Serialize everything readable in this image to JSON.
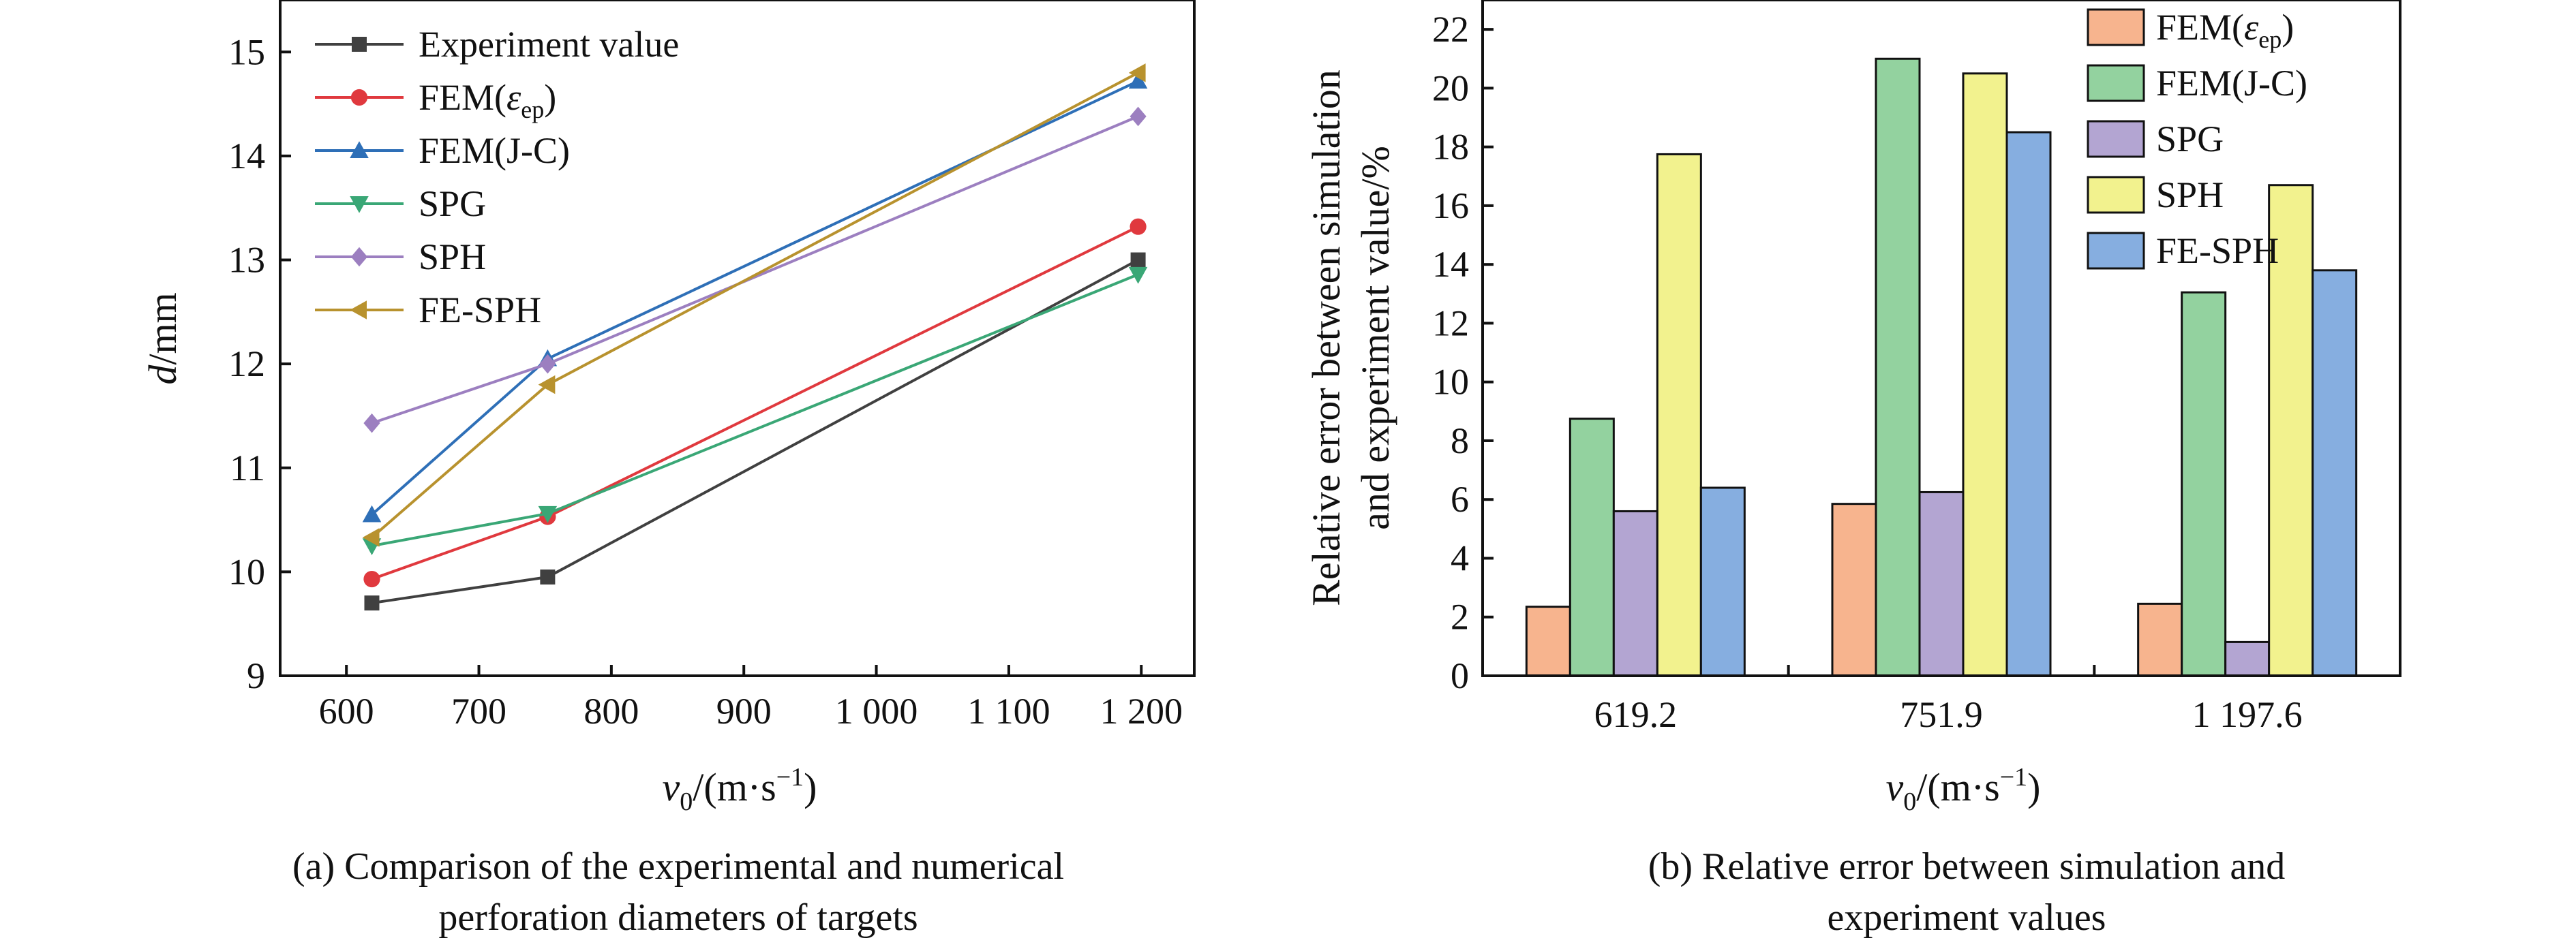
{
  "chart_data": [
    {
      "type": "line",
      "panel": "a",
      "xlabel_main": "v",
      "xlabel_sub": "0",
      "xlabel_unit": "/(m·s",
      "xlabel_sup": "−1",
      "xlabel_close": ")",
      "ylabel_var": "d",
      "ylabel_unit": "/mm",
      "xlim": [
        550,
        1240
      ],
      "ylim": [
        9,
        15.5
      ],
      "xticks": [
        600,
        700,
        800,
        900,
        1000,
        1100,
        1200
      ],
      "xtick_labels": [
        "600",
        "700",
        "800",
        "900",
        "1 000",
        "1 100",
        "1 200"
      ],
      "yticks": [
        9,
        10,
        11,
        12,
        13,
        14,
        15
      ],
      "ytick_labels": [
        "9",
        "10",
        "11",
        "12",
        "13",
        "14",
        "15"
      ],
      "x": [
        619.2,
        751.9,
        1197.6
      ],
      "series": [
        {
          "name": "Experiment value",
          "marker": "square",
          "color": "#404040",
          "values": [
            9.7,
            9.95,
            13.0
          ]
        },
        {
          "name": "FEM(",
          "name_sym": "ε",
          "name_sub": "ep",
          "name_close": ")",
          "marker": "circle",
          "color": "#e0393e",
          "values": [
            9.93,
            10.53,
            13.32
          ]
        },
        {
          "name": "FEM(J-C)",
          "marker": "triangle-up",
          "color": "#2e6fb7",
          "values": [
            10.55,
            12.05,
            14.72
          ]
        },
        {
          "name": "SPG",
          "marker": "triangle-down",
          "color": "#3aa776",
          "values": [
            10.25,
            10.56,
            12.86
          ]
        },
        {
          "name": "SPH",
          "marker": "diamond",
          "color": "#9c7fc0",
          "values": [
            11.43,
            12.0,
            14.38
          ]
        },
        {
          "name": "FE-SPH",
          "marker": "triangle-left",
          "color": "#b8922e",
          "values": [
            10.33,
            11.8,
            14.8
          ]
        }
      ],
      "caption_lines": [
        "(a) Comparison of the experimental and numerical",
        "perforation diameters of targets"
      ],
      "grid": false,
      "legend_position": "top-left"
    },
    {
      "type": "bar",
      "panel": "b",
      "xlabel_main": "v",
      "xlabel_sub": "0",
      "xlabel_unit": "/(m·s",
      "xlabel_sup": "−1",
      "xlabel_close": ")",
      "ylabel_lines": [
        "Relative error between simulation",
        "and experiment value/%"
      ],
      "ylim": [
        0,
        23
      ],
      "yticks": [
        0,
        2,
        4,
        6,
        8,
        10,
        12,
        14,
        16,
        18,
        20,
        22
      ],
      "ytick_labels": [
        "0",
        "2",
        "4",
        "6",
        "8",
        "10",
        "12",
        "14",
        "16",
        "18",
        "20",
        "22"
      ],
      "categories": [
        "619.2",
        "751.9",
        "1 197.6"
      ],
      "series": [
        {
          "name": "FEM(",
          "name_sym": "ε",
          "name_sub": "ep",
          "name_close": ")",
          "color": "#f7b48e",
          "values": [
            2.35,
            5.85,
            2.45
          ]
        },
        {
          "name": "FEM(J-C)",
          "color": "#93d29f",
          "values": [
            8.75,
            21.0,
            13.05
          ]
        },
        {
          "name": "SPG",
          "color": "#b3a5d2",
          "values": [
            5.6,
            6.25,
            1.15
          ]
        },
        {
          "name": "SPH",
          "color": "#f2f28e",
          "values": [
            17.75,
            20.5,
            16.7
          ]
        },
        {
          "name": "FE-SPH",
          "color": "#86aee0",
          "values": [
            6.4,
            18.5,
            13.8
          ]
        }
      ],
      "caption_lines": [
        "(b) Relative error between simulation and",
        "experiment values"
      ],
      "grid": false,
      "legend_position": "top-right"
    }
  ]
}
